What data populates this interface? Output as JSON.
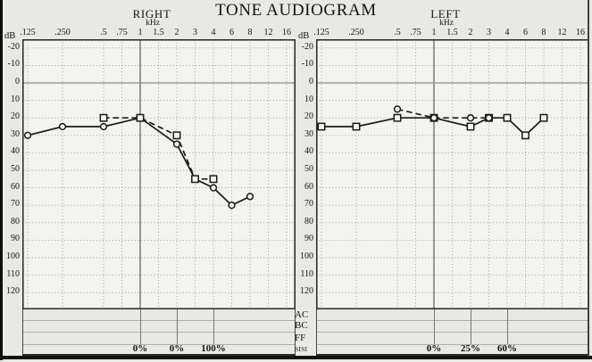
{
  "title": "TONE AUDIOGRAM",
  "bottom_rows": [
    "AC",
    "BC",
    "FF",
    "SISI"
  ],
  "colors": {
    "page_bg": "#e9e9e3",
    "chart_bg": "#f4f4ee",
    "grid_dotted": "#9a9a94",
    "zero_line": "#8a8a85",
    "one_khz_line": "#4f4f4a",
    "plot_border": "#2b2b28",
    "series_line": "#1a1a18",
    "table_line": "#aeaea6",
    "table_divider": "#787872"
  },
  "chart_data": [
    {
      "type": "line",
      "panel": "right",
      "title": "RIGHT",
      "xlabel": "kHz",
      "ylabel": "dB",
      "x_categories": [
        ".125",
        ".250",
        ".5",
        ".75",
        "1",
        "1.5",
        "2",
        "3",
        "4",
        "6",
        "8",
        "12",
        "16"
      ],
      "ylim": [
        -20,
        120
      ],
      "y_ticks": [
        -20,
        -10,
        0,
        10,
        20,
        30,
        40,
        50,
        60,
        70,
        80,
        90,
        100,
        110,
        120
      ],
      "grid": "dotted",
      "legend_position": "none",
      "series": [
        {
          "name": "AC",
          "line": "solid",
          "marker": "circle",
          "x": [
            ".125",
            ".250",
            ".5",
            "1",
            "2",
            "3",
            "4",
            "6",
            "8"
          ],
          "y": [
            30,
            25,
            25,
            20,
            35,
            55,
            60,
            70,
            65
          ]
        },
        {
          "name": "BC",
          "line": "dashed",
          "marker": "square",
          "x": [
            ".5",
            "1",
            "2",
            "3",
            "4"
          ],
          "y": [
            20,
            20,
            30,
            55,
            55
          ]
        }
      ],
      "sisi": [
        {
          "x": "1",
          "value": "0%"
        },
        {
          "x": "2",
          "value": "0%"
        },
        {
          "x": "4",
          "value": "100%"
        }
      ]
    },
    {
      "type": "line",
      "panel": "left",
      "title": "LEFT",
      "xlabel": "kHz",
      "ylabel": "dB",
      "x_categories": [
        ".125",
        ".250",
        ".5",
        ".75",
        "1",
        "1.5",
        "2",
        "3",
        "4",
        "6",
        "8",
        "12",
        "16"
      ],
      "ylim": [
        -20,
        120
      ],
      "y_ticks": [
        -20,
        -10,
        0,
        10,
        20,
        30,
        40,
        50,
        60,
        70,
        80,
        90,
        100,
        110,
        120
      ],
      "grid": "dotted",
      "legend_position": "none",
      "series": [
        {
          "name": "AC",
          "line": "solid",
          "marker": "square",
          "x": [
            ".125",
            ".250",
            ".5",
            "1",
            "2",
            "3",
            "4",
            "6",
            "8"
          ],
          "y": [
            25,
            25,
            20,
            20,
            25,
            20,
            20,
            30,
            20
          ]
        },
        {
          "name": "BC",
          "line": "dashed",
          "marker": "circle",
          "x": [
            ".5",
            "1",
            "2",
            "3"
          ],
          "y": [
            15,
            20,
            20,
            20
          ]
        }
      ],
      "sisi": [
        {
          "x": "1",
          "value": "0%"
        },
        {
          "x": "2",
          "value": "25%"
        },
        {
          "x": "4",
          "value": "60%"
        }
      ]
    }
  ]
}
